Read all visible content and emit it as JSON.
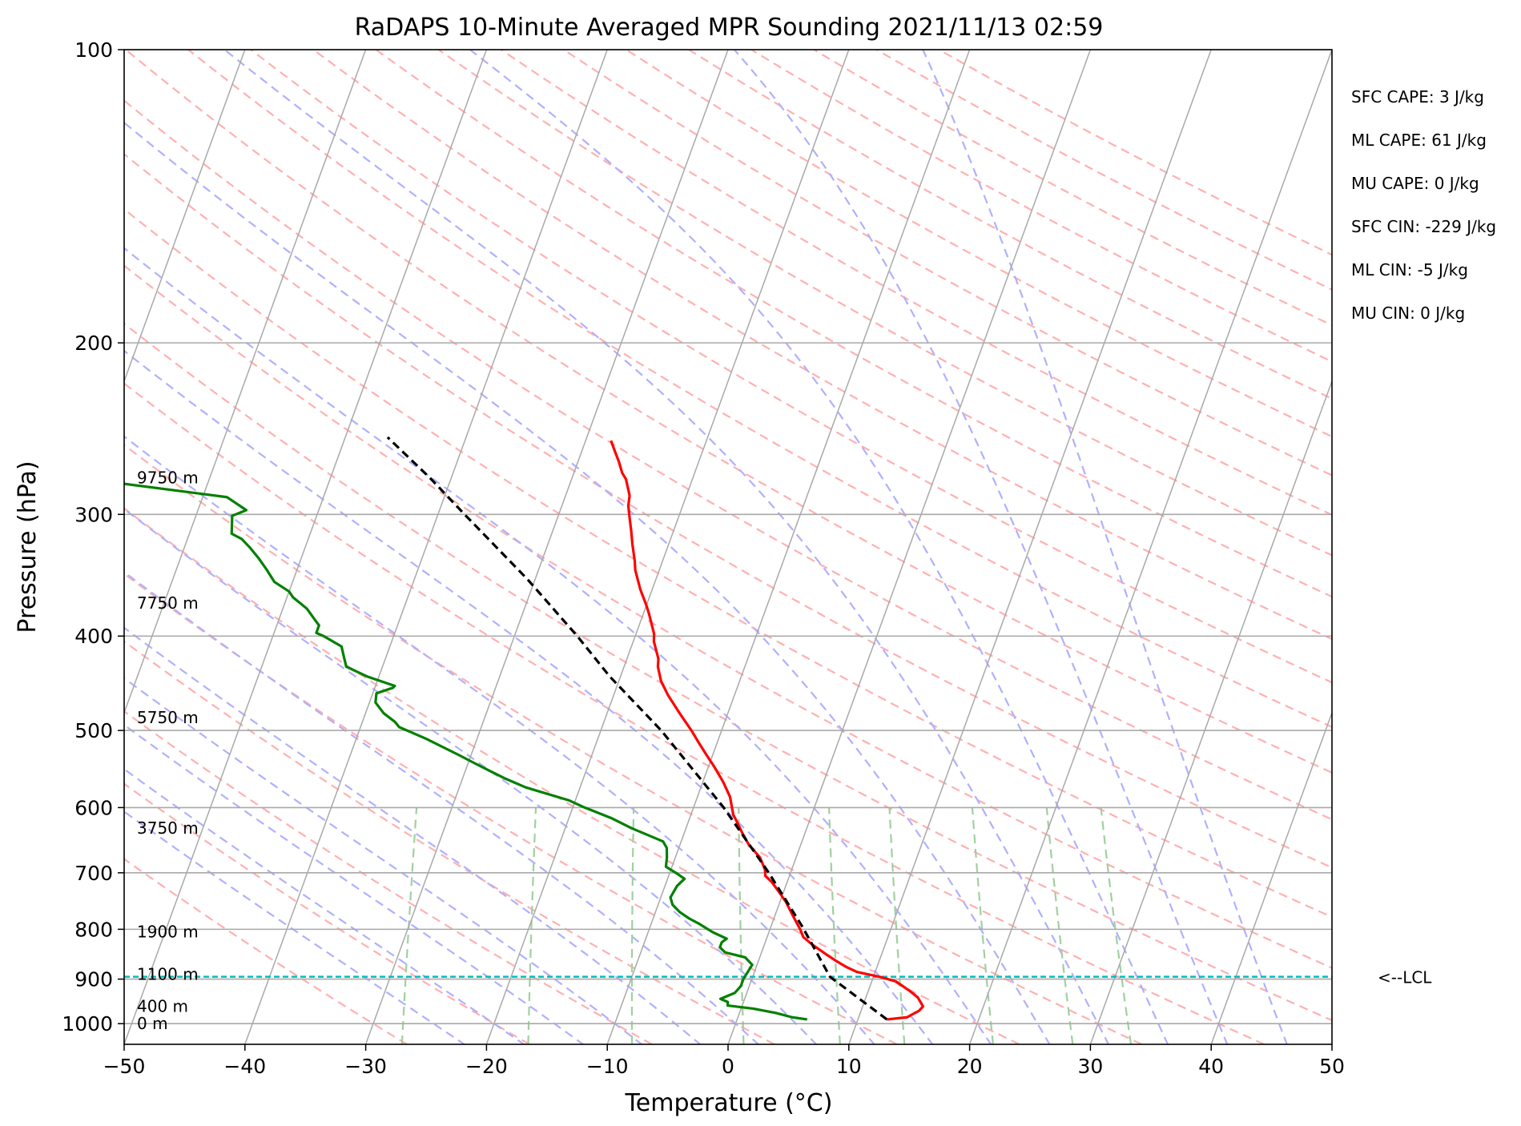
{
  "chart_data": {
    "type": "line",
    "title": "RaDAPS 10-Minute Averaged MPR Sounding 2021/11/13 02:59",
    "xlabel": "Temperature (°C)",
    "ylabel": "Pressure (hPa)",
    "xlim": [
      -50,
      50
    ],
    "ylim": [
      1050,
      100
    ],
    "y_scale": "log",
    "x_ticks": [
      {
        "value": -50,
        "label": "−50"
      },
      {
        "value": -40,
        "label": "−40"
      },
      {
        "value": -30,
        "label": "−30"
      },
      {
        "value": -20,
        "label": "−20"
      },
      {
        "value": -10,
        "label": "−10"
      },
      {
        "value": 0,
        "label": "0"
      },
      {
        "value": 10,
        "label": "10"
      },
      {
        "value": 20,
        "label": "20"
      },
      {
        "value": 30,
        "label": "30"
      },
      {
        "value": 40,
        "label": "40"
      },
      {
        "value": 50,
        "label": "50"
      }
    ],
    "y_ticks": [
      {
        "value": 100,
        "label": "100"
      },
      {
        "value": 200,
        "label": "200"
      },
      {
        "value": 300,
        "label": "300"
      },
      {
        "value": 400,
        "label": "400"
      },
      {
        "value": 500,
        "label": "500"
      },
      {
        "value": 600,
        "label": "600"
      },
      {
        "value": 700,
        "label": "700"
      },
      {
        "value": 800,
        "label": "800"
      },
      {
        "value": 900,
        "label": "900"
      },
      {
        "value": 1000,
        "label": "1000"
      }
    ],
    "grid": true,
    "skew": "skew-T log-P",
    "series": [
      {
        "kind": "temperature",
        "color": "#ff0000",
        "points": [
          [
            12.4,
            990
          ],
          [
            14.0,
            985
          ],
          [
            14.8,
            970
          ],
          [
            15.0,
            960
          ],
          [
            14.3,
            940
          ],
          [
            13.4,
            925
          ],
          [
            12.0,
            905
          ],
          [
            10.5,
            895
          ],
          [
            8.5,
            885
          ],
          [
            7.5,
            875
          ],
          [
            6.5,
            863
          ],
          [
            5.5,
            850
          ],
          [
            4.0,
            830
          ],
          [
            3.0,
            815
          ],
          [
            2.5,
            800
          ],
          [
            1.5,
            775
          ],
          [
            0.5,
            750
          ],
          [
            -0.5,
            730
          ],
          [
            -1.3,
            715
          ],
          [
            -2.0,
            705
          ],
          [
            -2.2,
            695
          ],
          [
            -3.0,
            675
          ],
          [
            -4.3,
            655
          ],
          [
            -5.3,
            635
          ],
          [
            -6.0,
            620
          ],
          [
            -6.5,
            610
          ],
          [
            -7.3,
            585
          ],
          [
            -8.3,
            565
          ],
          [
            -9.5,
            545
          ],
          [
            -10.5,
            530
          ],
          [
            -11.5,
            515
          ],
          [
            -12.5,
            500
          ],
          [
            -14.0,
            480
          ],
          [
            -15.5,
            460
          ],
          [
            -16.5,
            445
          ],
          [
            -17.2,
            430
          ],
          [
            -17.4,
            422
          ],
          [
            -18.3,
            405
          ],
          [
            -18.5,
            398
          ],
          [
            -19.5,
            380
          ],
          [
            -20.0,
            372
          ],
          [
            -21.0,
            358
          ],
          [
            -22.0,
            342
          ],
          [
            -22.3,
            335
          ],
          [
            -23.0,
            322
          ],
          [
            -23.5,
            312
          ],
          [
            -24.0,
            303
          ],
          [
            -24.5,
            294
          ],
          [
            -24.7,
            287
          ],
          [
            -25.5,
            276
          ],
          [
            -26.0,
            272
          ],
          [
            -26.6,
            265
          ],
          [
            -27.3,
            258
          ],
          [
            -27.9,
            252
          ]
        ]
      },
      {
        "kind": "dewpoint",
        "color": "#008000",
        "points": [
          [
            5.8,
            990
          ],
          [
            4.5,
            985
          ],
          [
            3.0,
            975
          ],
          [
            1.0,
            965
          ],
          [
            -1.2,
            958
          ],
          [
            -1.3,
            950
          ],
          [
            -2.0,
            943
          ],
          [
            -1.0,
            930
          ],
          [
            -0.7,
            915
          ],
          [
            -0.7,
            900
          ],
          [
            -0.5,
            880
          ],
          [
            -0.4,
            870
          ],
          [
            -1.2,
            855
          ],
          [
            -3.0,
            845
          ],
          [
            -3.6,
            835
          ],
          [
            -3.6,
            825
          ],
          [
            -3.3,
            818
          ],
          [
            -4.7,
            805
          ],
          [
            -6.0,
            790
          ],
          [
            -7.0,
            780
          ],
          [
            -8.0,
            768
          ],
          [
            -8.8,
            755
          ],
          [
            -9.2,
            742
          ],
          [
            -9.0,
            722
          ],
          [
            -8.6,
            710
          ],
          [
            -9.5,
            700
          ],
          [
            -10.5,
            690
          ],
          [
            -10.7,
            675
          ],
          [
            -11.0,
            660
          ],
          [
            -11.5,
            650
          ],
          [
            -14.5,
            630
          ],
          [
            -16.5,
            615
          ],
          [
            -19.0,
            600
          ],
          [
            -20.5,
            590
          ],
          [
            -24.5,
            572
          ],
          [
            -26.5,
            560
          ],
          [
            -28.0,
            550
          ],
          [
            -29.5,
            540
          ],
          [
            -31.0,
            530
          ],
          [
            -34.2,
            510
          ],
          [
            -36.8,
            496
          ],
          [
            -37.3,
            490
          ],
          [
            -38.5,
            480
          ],
          [
            -39.5,
            468
          ],
          [
            -39.7,
            458
          ],
          [
            -38.5,
            452
          ],
          [
            -38.4,
            450
          ],
          [
            -41.0,
            440
          ],
          [
            -43.0,
            430
          ],
          [
            -43.5,
            420
          ],
          [
            -44.0,
            410
          ],
          [
            -45.8,
            400
          ],
          [
            -46.5,
            397
          ],
          [
            -46.5,
            390
          ],
          [
            -47.0,
            385
          ],
          [
            -48.0,
            375
          ],
          [
            -49.5,
            365
          ],
          [
            -50.0,
            360
          ],
          [
            -51.5,
            352
          ],
          [
            -52.5,
            342
          ],
          [
            -53.5,
            333
          ],
          [
            -54.5,
            325
          ],
          [
            -55.5,
            318
          ],
          [
            -56.5,
            314
          ],
          [
            -56.8,
            306
          ],
          [
            -57.0,
            301
          ],
          [
            -56.0,
            297
          ],
          [
            -58.0,
            288
          ],
          [
            -68.0,
            278
          ],
          [
            -72.0,
            272
          ]
        ]
      },
      {
        "kind": "parcel",
        "color": "#000000",
        "dashed": true,
        "points": [
          [
            12.4,
            990
          ],
          [
            6.4,
            895
          ],
          [
            2.6,
            795
          ],
          [
            -1.8,
            700
          ],
          [
            -7.5,
            600
          ],
          [
            -15.0,
            500
          ],
          [
            -20.9,
            440
          ],
          [
            -24.8,
            400
          ],
          [
            -30.6,
            350
          ],
          [
            -37.8,
            300
          ],
          [
            -41.8,
            275
          ],
          [
            -46.5,
            250
          ]
        ]
      }
    ],
    "lcl": {
      "pressure": 895,
      "label": "<--LCL",
      "color": "#00bfbf"
    },
    "height_labels": [
      {
        "pressure": 1000,
        "label": "0 m"
      },
      {
        "pressure": 960,
        "label": "400 m"
      },
      {
        "pressure": 890,
        "label": "1100 m"
      },
      {
        "pressure": 805,
        "label": "1900 m"
      },
      {
        "pressure": 630,
        "label": "3750 m"
      },
      {
        "pressure": 485,
        "label": "5750 m"
      },
      {
        "pressure": 370,
        "label": "7750 m"
      },
      {
        "pressure": 275,
        "label": "9750 m"
      }
    ],
    "stats": [
      "SFC CAPE: 3 J/kg",
      "ML CAPE: 61 J/kg",
      "MU CAPE: 0 J/kg",
      "SFC CIN: -229 J/kg",
      "ML CIN: -5 J/kg",
      "MU CIN: 0 J/kg"
    ],
    "background_lines": {
      "isotherm_color": "#a9a9a9",
      "dry_adiabat_color": "#ffb0b0",
      "moist_adiabat_color": "#b0b0ff",
      "mixing_ratio_color": "#a0d0a0"
    }
  }
}
